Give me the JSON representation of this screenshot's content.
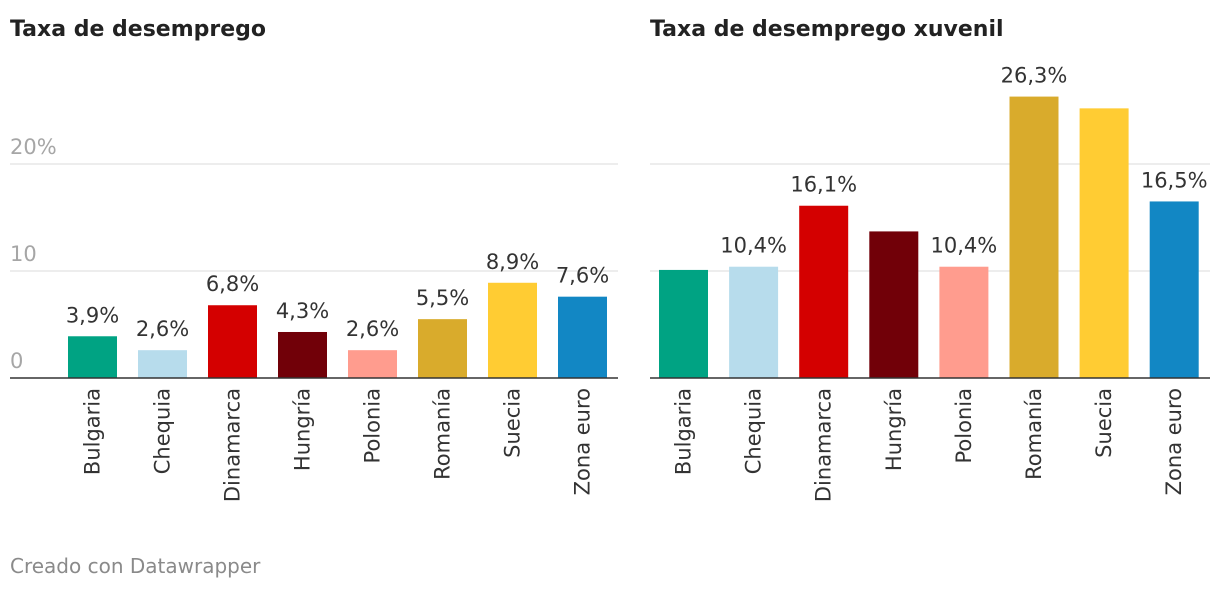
{
  "footer": "Creado con Datawrapper",
  "chart_data": [
    {
      "type": "bar",
      "title": "Taxa de desemprego",
      "categories": [
        "Bulgaria",
        "Chequia",
        "Dinamarca",
        "Hungría",
        "Polonia",
        "Romanía",
        "Suecia",
        "Zona euro"
      ],
      "values": [
        3.9,
        2.6,
        6.8,
        4.3,
        2.6,
        5.5,
        8.9,
        7.6
      ],
      "value_labels": [
        "3,9%",
        "2,6%",
        "6,8%",
        "4,3%",
        "2,6%",
        "5,5%",
        "8,9%",
        "7,6%"
      ],
      "colors": [
        "#00a383",
        "#b7dcec",
        "#d40000",
        "#710008",
        "#ff9c8e",
        "#d9ab2c",
        "#ffcc33",
        "#1287c4"
      ],
      "yticks": [
        0,
        10,
        20
      ],
      "ytick_labels": [
        "0",
        "10",
        "20%"
      ],
      "ylim": [
        0,
        30
      ],
      "grid": true,
      "xlabel": "",
      "ylabel": ""
    },
    {
      "type": "bar",
      "title": "Taxa de desemprego xuvenil",
      "categories": [
        "Bulgaria",
        "Chequia",
        "Dinamarca",
        "Hungría",
        "Polonia",
        "Romanía",
        "Suecia",
        "Zona euro"
      ],
      "values": [
        10.1,
        10.4,
        16.1,
        13.7,
        10.4,
        26.3,
        25.2,
        16.5
      ],
      "value_labels": [
        "",
        "10,4%",
        "16,1%",
        "",
        "10,4%",
        "26,3%",
        "",
        "16,5%"
      ],
      "colors": [
        "#00a383",
        "#b7dcec",
        "#d40000",
        "#710008",
        "#ff9c8e",
        "#d9ab2c",
        "#ffcc33",
        "#1287c4"
      ],
      "yticks": [
        0,
        10,
        20
      ],
      "ytick_labels": [
        "",
        "",
        ""
      ],
      "ylim": [
        0,
        30
      ],
      "grid": true,
      "xlabel": "",
      "ylabel": ""
    }
  ]
}
